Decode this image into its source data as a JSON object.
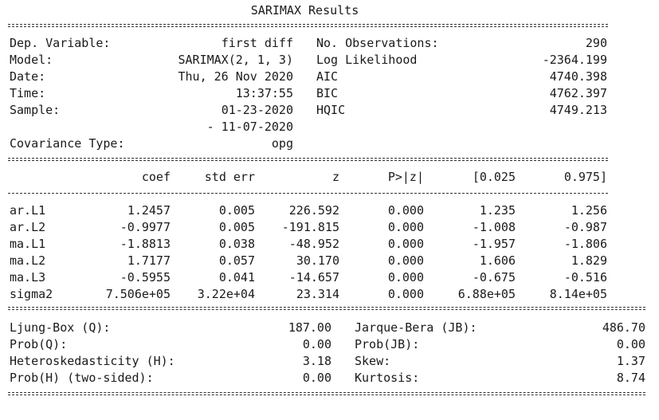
{
  "title": "SARIMAX Results",
  "summary": {
    "left": [
      {
        "label": "Dep. Variable:",
        "value": "first diff"
      },
      {
        "label": "Model:",
        "value": "SARIMAX(2, 1, 3)"
      },
      {
        "label": "Date:",
        "value": "Thu, 26 Nov 2020"
      },
      {
        "label": "Time:",
        "value": "13:37:55"
      },
      {
        "label": "Sample:",
        "value": "01-23-2020"
      },
      {
        "label": "",
        "value": "- 11-07-2020"
      },
      {
        "label": "Covariance Type:",
        "value": "opg"
      }
    ],
    "right": [
      {
        "label": "No. Observations:",
        "value": "290"
      },
      {
        "label": "Log Likelihood",
        "value": "-2364.199"
      },
      {
        "label": "AIC",
        "value": "4740.398"
      },
      {
        "label": "BIC",
        "value": "4762.397"
      },
      {
        "label": "HQIC",
        "value": "4749.213"
      }
    ]
  },
  "coef_table": {
    "headers": [
      "",
      "coef",
      "std err",
      "z",
      "P>|z|",
      "[0.025",
      "0.975]"
    ],
    "rows": [
      [
        "ar.L1",
        "1.2457",
        "0.005",
        "226.592",
        "0.000",
        "1.235",
        "1.256"
      ],
      [
        "ar.L2",
        "-0.9977",
        "0.005",
        "-191.815",
        "0.000",
        "-1.008",
        "-0.987"
      ],
      [
        "ma.L1",
        "-1.8813",
        "0.038",
        "-48.952",
        "0.000",
        "-1.957",
        "-1.806"
      ],
      [
        "ma.L2",
        "1.7177",
        "0.057",
        "30.170",
        "0.000",
        "1.606",
        "1.829"
      ],
      [
        "ma.L3",
        "-0.5955",
        "0.041",
        "-14.657",
        "0.000",
        "-0.675",
        "-0.516"
      ],
      [
        "sigma2",
        "7.506e+05",
        "3.22e+04",
        "23.314",
        "0.000",
        "6.88e+05",
        "8.14e+05"
      ]
    ]
  },
  "diagnostics": {
    "left": [
      {
        "label": "Ljung-Box (Q):",
        "value": "187.00"
      },
      {
        "label": "Prob(Q):",
        "value": "0.00"
      },
      {
        "label": "Heteroskedasticity (H):",
        "value": "3.18"
      },
      {
        "label": "Prob(H) (two-sided):",
        "value": "0.00"
      }
    ],
    "right": [
      {
        "label": "Jarque-Bera (JB):",
        "value": "486.70"
      },
      {
        "label": "Prob(JB):",
        "value": "0.00"
      },
      {
        "label": "Skew:",
        "value": "1.37"
      },
      {
        "label": "Kurtosis:",
        "value": "8.74"
      }
    ]
  }
}
